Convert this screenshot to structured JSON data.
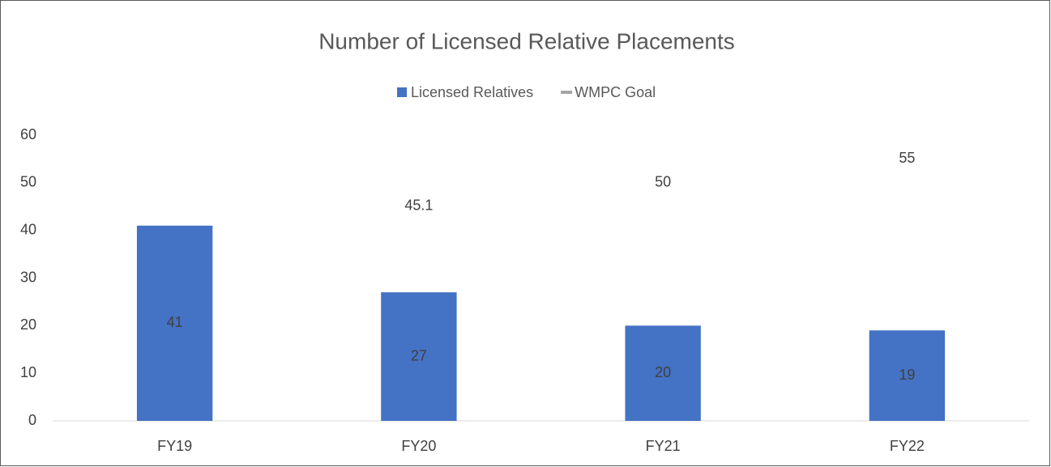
{
  "chart_data": {
    "type": "bar",
    "title": "Number of Licensed Relative Placements",
    "categories": [
      "FY19",
      "FY20",
      "FY21",
      "FY22"
    ],
    "series": [
      {
        "name": "Licensed Relatives",
        "type": "bar",
        "color": "#4472c4",
        "values": [
          41,
          27,
          20,
          19
        ]
      },
      {
        "name": "WMPC Goal",
        "type": "line",
        "color": "#a5a5a5",
        "values": [
          null,
          45.1,
          50,
          55
        ]
      }
    ],
    "ylim": [
      0,
      60
    ],
    "yticks": [
      0,
      10,
      20,
      30,
      40,
      50,
      60
    ],
    "grid": false,
    "legend": "top"
  }
}
